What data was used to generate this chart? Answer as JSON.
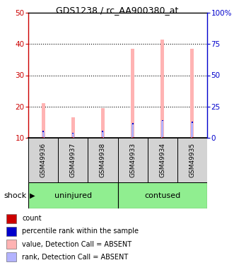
{
  "title": "GDS1238 / rc_AA900380_at",
  "samples": [
    "GSM49936",
    "GSM49937",
    "GSM49938",
    "GSM49933",
    "GSM49934",
    "GSM49935"
  ],
  "group_labels": [
    "uninjured",
    "contused"
  ],
  "group_color": "#90ee90",
  "factor_label": "shock",
  "ylim_left": [
    10,
    50
  ],
  "ylim_right": [
    0,
    100
  ],
  "yticks_left": [
    10,
    20,
    30,
    40,
    50
  ],
  "yticks_right": [
    0,
    25,
    50,
    75,
    100
  ],
  "ytick_labels_right": [
    "0",
    "25",
    "50",
    "75",
    "100%"
  ],
  "ylabel_left_color": "#cc0000",
  "ylabel_right_color": "#0000cc",
  "absent_value_tops": [
    21,
    16.5,
    19.5,
    38.5,
    41.5,
    38.5
  ],
  "absent_rank_tops": [
    12.0,
    11.5,
    12.0,
    14.5,
    15.5,
    15.0
  ],
  "color_absent_value": "#ffb3b3",
  "color_absent_rank": "#b3b3ff",
  "color_count": "#cc0000",
  "color_rank": "#0000cc",
  "plot_bg_color": "white",
  "sample_bg_color": "#d3d3d3",
  "legend_items": [
    [
      "#cc0000",
      "count"
    ],
    [
      "#0000cc",
      "percentile rank within the sample"
    ],
    [
      "#ffb3b3",
      "value, Detection Call = ABSENT"
    ],
    [
      "#b3b3ff",
      "rank, Detection Call = ABSENT"
    ]
  ]
}
